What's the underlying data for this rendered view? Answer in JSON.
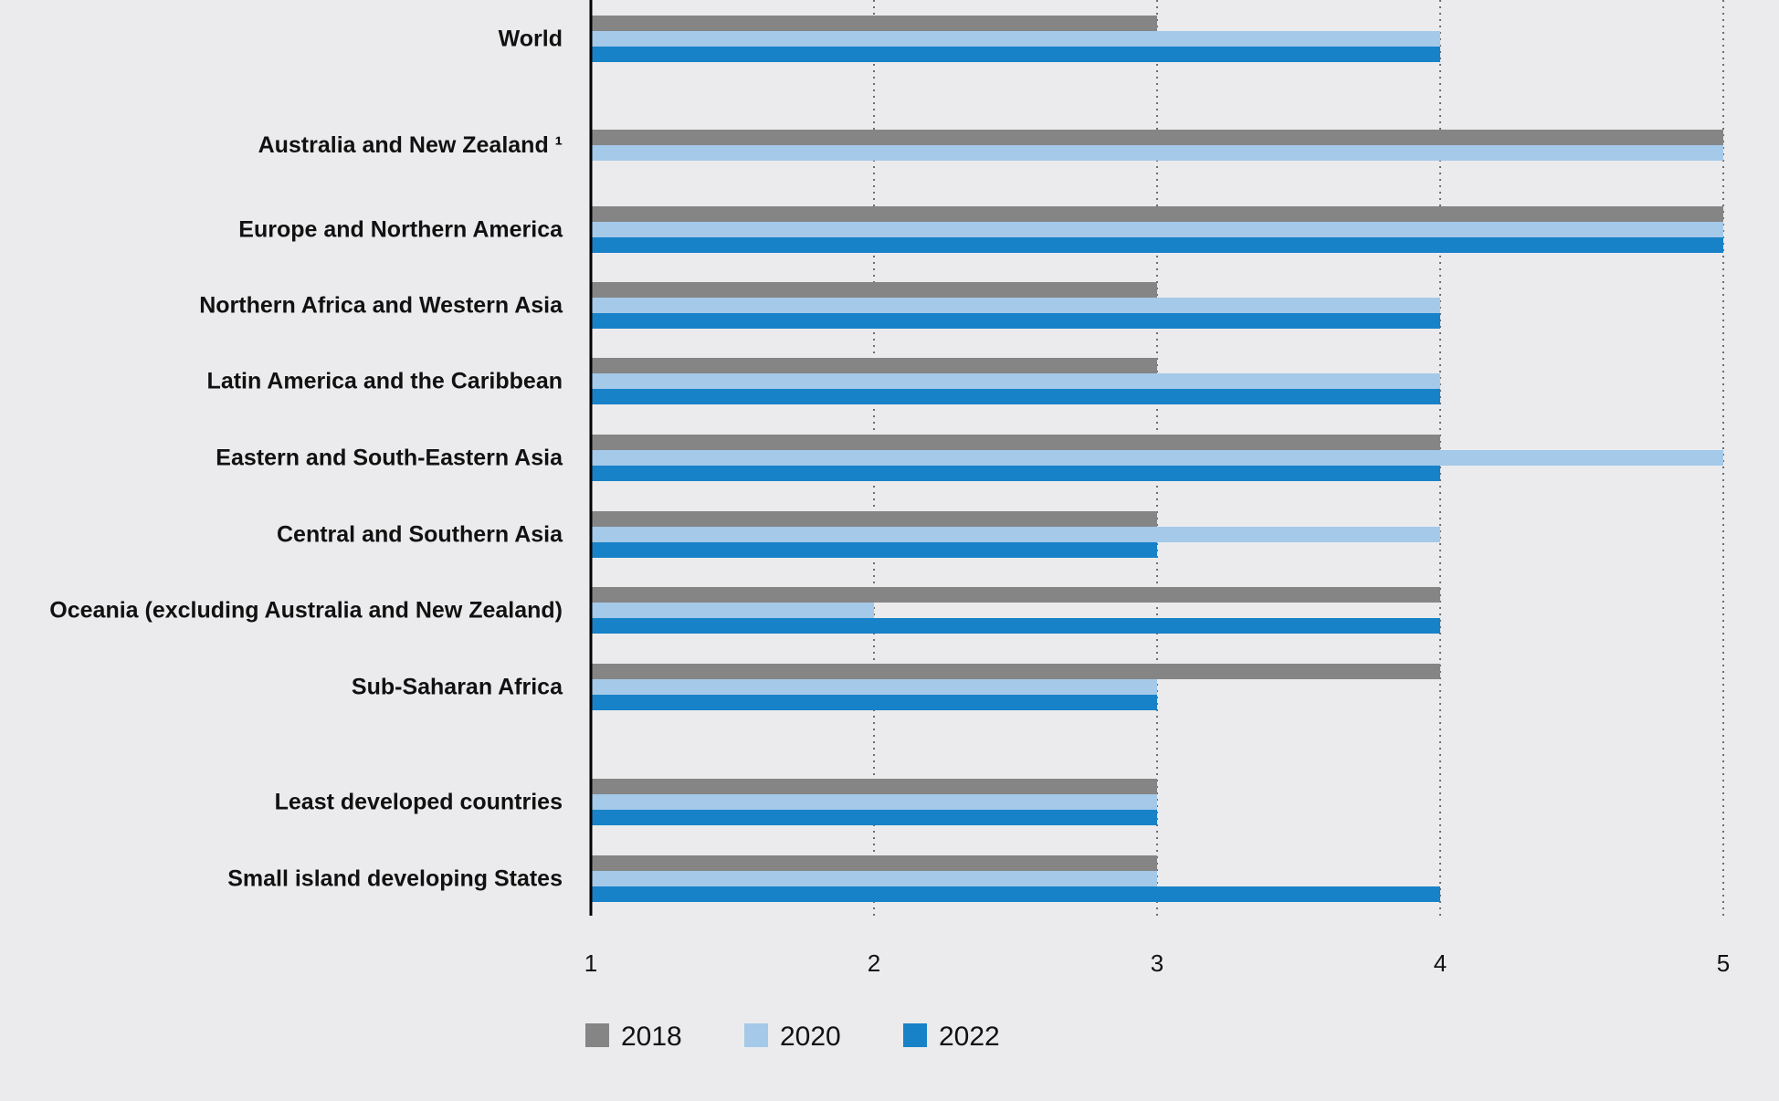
{
  "chart_data": {
    "type": "bar",
    "orientation": "horizontal",
    "categories": [
      "World",
      "Australia and New Zealand ¹",
      "Europe and Northern America",
      "Northern Africa and Western Asia",
      "Latin America and the Caribbean",
      "Eastern and South-Eastern Asia",
      "Central and Southern Asia",
      "Oceania (excluding Australia and New Zealand)",
      "Sub-Saharan Africa",
      "Least developed countries",
      "Small island developing States"
    ],
    "series": [
      {
        "name": "2018",
        "color": "#858585",
        "values": [
          3,
          5,
          5,
          3,
          3,
          4,
          3,
          4,
          4,
          3,
          3
        ]
      },
      {
        "name": "2020",
        "color": "#a4c9e9",
        "values": [
          4,
          5,
          5,
          4,
          4,
          5,
          4,
          2,
          3,
          3,
          3
        ]
      },
      {
        "name": "2022",
        "color": "#1782c8",
        "values": [
          4,
          null,
          5,
          4,
          4,
          4,
          3,
          4,
          3,
          3,
          4
        ]
      }
    ],
    "xlim": [
      1,
      5
    ],
    "x_ticks": [
      "1",
      "2",
      "3",
      "4",
      "5"
    ],
    "grid": true,
    "legend_position": "bottom-left",
    "title": "",
    "xlabel": "",
    "ylabel": ""
  }
}
